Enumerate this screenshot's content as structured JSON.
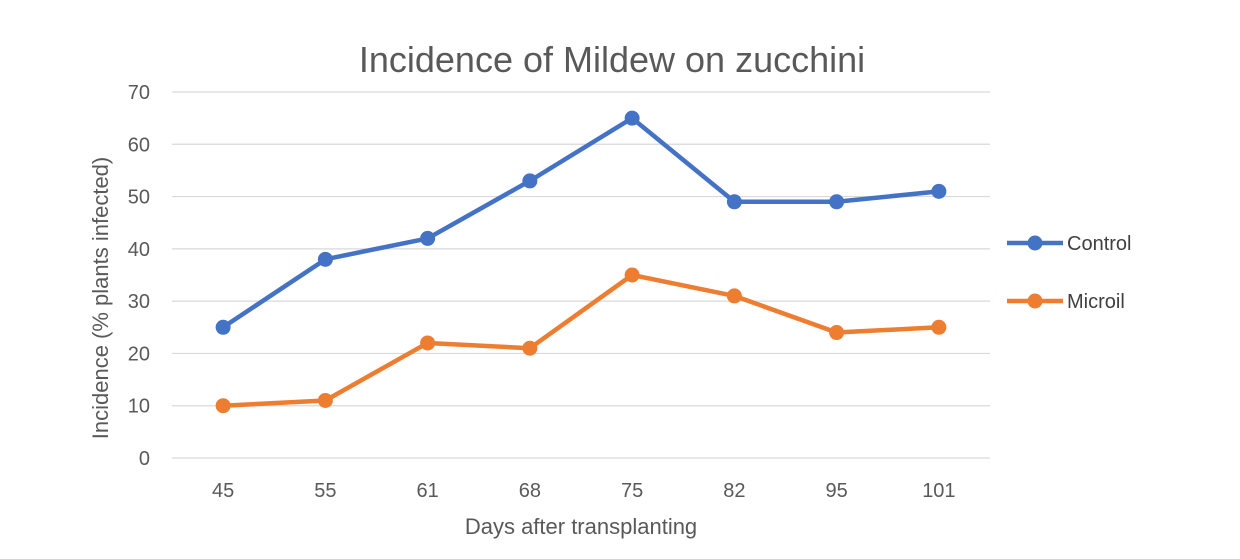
{
  "chart_data": {
    "type": "line",
    "title": "Incidence of Mildew on zucchini",
    "xlabel": "Days after transplanting",
    "ylabel": "Incidence (% plants infected)",
    "categories": [
      "45",
      "55",
      "61",
      "68",
      "75",
      "82",
      "95",
      "101"
    ],
    "ylim": [
      0,
      70
    ],
    "yticks": [
      0,
      10,
      20,
      30,
      40,
      50,
      60,
      70
    ],
    "grid": true,
    "legend_position": "right",
    "series": [
      {
        "name": "Control",
        "color": "#4472c4",
        "values": [
          25,
          38,
          42,
          53,
          65,
          49,
          49,
          51
        ]
      },
      {
        "name": "Microil",
        "color": "#ed7d31",
        "values": [
          10,
          11,
          22,
          21,
          35,
          31,
          24,
          25
        ]
      }
    ]
  }
}
